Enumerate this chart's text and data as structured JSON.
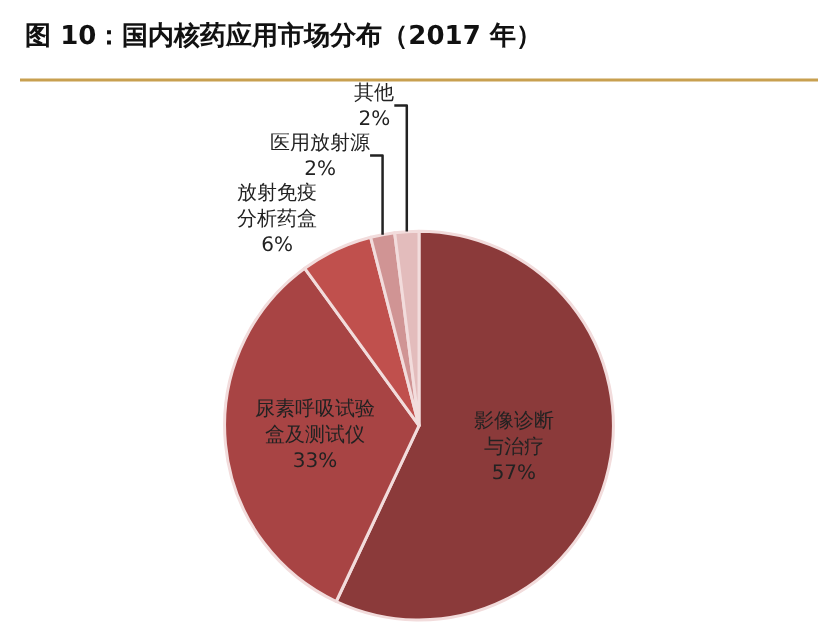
{
  "chart_data": {
    "type": "pie",
    "title": "图 10：国内核药应用市场分布（2017 年）",
    "categories": [
      "影像诊断与治疗",
      "尿素呼吸试验盒及测试仪",
      "放射免疫分析药盒",
      "医用放射源",
      "其他"
    ],
    "values": [
      57,
      33,
      6,
      2,
      2
    ],
    "value_labels": [
      "57%",
      "33%",
      "6%",
      "2%",
      "2%"
    ],
    "colors": [
      "#8b3a3a",
      "#a84444",
      "#c0504d",
      "#d09494",
      "#e3bcbc"
    ],
    "legend": false
  }
}
